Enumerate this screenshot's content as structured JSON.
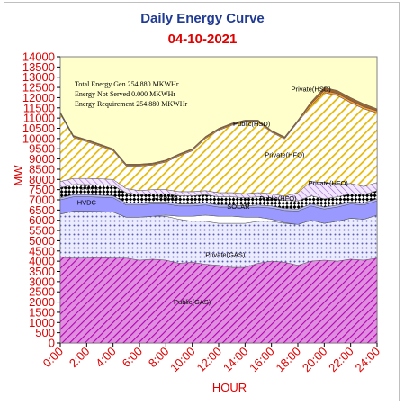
{
  "chart_data": {
    "type": "area",
    "stacked": true,
    "title": "Daily Energy Curve",
    "subtitle": "04-10-2021",
    "title_color": "#1f3a93",
    "subtitle_color": "#e00000",
    "xlabel": "HOUR",
    "ylabel": "MW",
    "axis_label_color": "#e00000",
    "ylim": [
      0,
      14000
    ],
    "yticks": [
      0,
      500,
      1000,
      1500,
      2000,
      2500,
      3000,
      3500,
      4000,
      4500,
      5000,
      5500,
      6000,
      6500,
      7000,
      7500,
      8000,
      8500,
      9000,
      9500,
      10000,
      10500,
      11000,
      11500,
      12000,
      12500,
      13000,
      13500,
      14000
    ],
    "xticks": [
      "0:00",
      "2:00",
      "4:00",
      "6:00",
      "8:00",
      "10:00",
      "12:00",
      "14:00",
      "16:00",
      "18:00",
      "20:00",
      "22:00",
      "24:00"
    ],
    "x": [
      0,
      1,
      2,
      3,
      4,
      5,
      6,
      7,
      8,
      9,
      10,
      11,
      12,
      13,
      14,
      15,
      16,
      17,
      18,
      19,
      20,
      21,
      22,
      23,
      24
    ],
    "grid": false,
    "plot_background": "#ffffcc",
    "summary_lines": [
      "Total Energy Gen 254.880 MKWHr",
      "Energy Not Served   0.000 MKWHr",
      "Energy Requirement     254.880 MKWHr"
    ],
    "series": [
      {
        "name": "Public(GAS)",
        "color": "#cc33cc",
        "pattern": "diag",
        "values": [
          4200,
          4150,
          4150,
          4180,
          4150,
          4150,
          4050,
          4100,
          4050,
          3900,
          3950,
          3850,
          3800,
          3700,
          3700,
          3900,
          4000,
          3950,
          3800,
          4000,
          4050,
          4000,
          4100,
          4050,
          4150
        ]
      },
      {
        "name": "Private(GAS)",
        "color": "#8080cc",
        "pattern": "dots",
        "values": [
          2100,
          2300,
          2300,
          2250,
          2250,
          2000,
          2100,
          2100,
          2150,
          2150,
          2000,
          2100,
          2050,
          2150,
          2150,
          2050,
          1950,
          1900,
          2000,
          2000,
          1800,
          1950,
          2000,
          2000,
          2100
        ]
      },
      {
        "name": "SOLAR",
        "color": "#ffffff",
        "pattern": "solid",
        "values": [
          0,
          0,
          0,
          0,
          0,
          0,
          0,
          0,
          50,
          150,
          250,
          300,
          350,
          350,
          300,
          200,
          100,
          30,
          0,
          0,
          0,
          0,
          0,
          0,
          0
        ]
      },
      {
        "name": "HYDRO",
        "color": "#9999ff",
        "pattern": "solid",
        "values": [
          700,
          700,
          700,
          700,
          700,
          600,
          600,
          600,
          550,
          500,
          500,
          500,
          450,
          450,
          450,
          500,
          550,
          600,
          650,
          700,
          700,
          700,
          700,
          700,
          700
        ]
      },
      {
        "name": "HVDC",
        "color": "#b8b8ff",
        "pattern": "solid",
        "values": [
          100,
          100,
          100,
          100,
          100,
          100,
          100,
          100,
          100,
          100,
          100,
          100,
          100,
          100,
          100,
          100,
          100,
          100,
          100,
          100,
          100,
          100,
          100,
          100,
          100
        ]
      },
      {
        "name": "COAL",
        "color": "#000000",
        "pattern": "checker",
        "values": [
          500,
          500,
          500,
          500,
          500,
          500,
          400,
          400,
          400,
          400,
          400,
          400,
          400,
          400,
          400,
          400,
          400,
          400,
          400,
          400,
          400,
          400,
          400,
          400,
          400
        ]
      },
      {
        "name": "Public(HFO)",
        "color": "#cc99ff",
        "pattern": "hatch",
        "values": [
          300,
          300,
          300,
          300,
          300,
          200,
          200,
          200,
          200,
          200,
          200,
          200,
          200,
          200,
          200,
          200,
          200,
          200,
          400,
          700,
          800,
          600,
          500,
          400,
          400
        ]
      },
      {
        "name": "Private(HFO)",
        "color": "#e6b800",
        "pattern": "stripe",
        "values": [
          3300,
          2000,
          1800,
          1600,
          1400,
          1100,
          1200,
          1200,
          1350,
          1750,
          2000,
          2550,
          3050,
          3300,
          3500,
          3450,
          3000,
          2800,
          3450,
          3700,
          4400,
          4350,
          3950,
          3800,
          3400
        ]
      },
      {
        "name": "Public(HSD)",
        "color": "#ff9933",
        "pattern": "solid",
        "values": [
          50,
          50,
          50,
          50,
          50,
          50,
          50,
          50,
          50,
          50,
          50,
          50,
          50,
          50,
          50,
          50,
          50,
          50,
          50,
          100,
          100,
          100,
          100,
          100,
          100
        ]
      },
      {
        "name": "Private(HSD)",
        "color": "#996633",
        "pattern": "solid",
        "values": [
          50,
          50,
          50,
          50,
          50,
          50,
          50,
          50,
          50,
          50,
          50,
          50,
          50,
          50,
          50,
          50,
          50,
          50,
          50,
          100,
          150,
          150,
          150,
          150,
          100
        ]
      }
    ],
    "annotations": [
      {
        "text": "Public(GAS)",
        "x": 10,
        "y": 1900
      },
      {
        "text": "Private(GAS)",
        "x": 12.5,
        "y": 4200
      },
      {
        "text": "SOLAR",
        "x": 13.5,
        "y": 6550
      },
      {
        "text": "HYDRO",
        "x": 8,
        "y": 6950
      },
      {
        "text": "HVDC",
        "x": 2,
        "y": 6750
      },
      {
        "text": "COAL",
        "x": 2.2,
        "y": 7500
      },
      {
        "text": "Public(HFO)",
        "x": 16.5,
        "y": 6950
      },
      {
        "text": "Private(HFO)",
        "x": 17,
        "y": 9100
      },
      {
        "text": "Public(HSD)",
        "x": 14.5,
        "y": 10600
      },
      {
        "text": "Private(HSD)",
        "x": 19,
        "y": 12300
      },
      {
        "text": "Private(HFO)",
        "x": 20.3,
        "y": 7700
      }
    ]
  }
}
